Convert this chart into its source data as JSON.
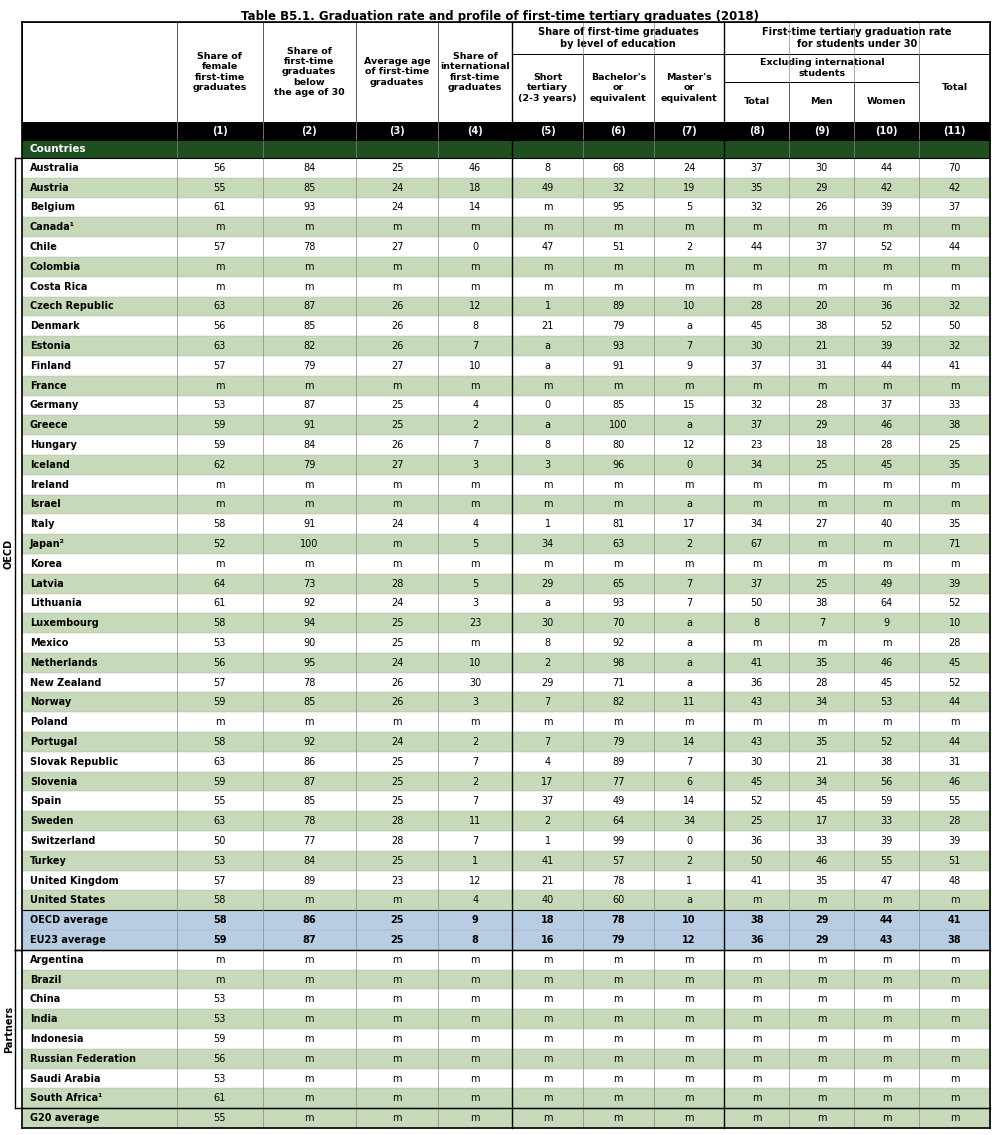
{
  "title": "Table B5.1. Graduation rate and profile of first-time tertiary graduates (2018)",
  "col_numbers": [
    "(1)",
    "(2)",
    "(3)",
    "(4)",
    "(5)",
    "(6)",
    "(7)",
    "(8)",
    "(9)",
    "(10)",
    "(11)"
  ],
  "oecd_label": "OECD",
  "partners_label": "Partners",
  "countries_header": "Countries",
  "rows": [
    [
      "Australia",
      "56",
      "84",
      "25",
      "46",
      "8",
      "68",
      "24",
      "37",
      "30",
      "44",
      "70"
    ],
    [
      "Austria",
      "55",
      "85",
      "24",
      "18",
      "49",
      "32",
      "19",
      "35",
      "29",
      "42",
      "42"
    ],
    [
      "Belgium",
      "61",
      "93",
      "24",
      "14",
      "m",
      "95",
      "5",
      "32",
      "26",
      "39",
      "37"
    ],
    [
      "Canada¹",
      "m",
      "m",
      "m",
      "m",
      "m",
      "m",
      "m",
      "m",
      "m",
      "m",
      "m"
    ],
    [
      "Chile",
      "57",
      "78",
      "27",
      "0",
      "47",
      "51",
      "2",
      "44",
      "37",
      "52",
      "44"
    ],
    [
      "Colombia",
      "m",
      "m",
      "m",
      "m",
      "m",
      "m",
      "m",
      "m",
      "m",
      "m",
      "m"
    ],
    [
      "Costa Rica",
      "m",
      "m",
      "m",
      "m",
      "m",
      "m",
      "m",
      "m",
      "m",
      "m",
      "m"
    ],
    [
      "Czech Republic",
      "63",
      "87",
      "26",
      "12",
      "1",
      "89",
      "10",
      "28",
      "20",
      "36",
      "32"
    ],
    [
      "Denmark",
      "56",
      "85",
      "26",
      "8",
      "21",
      "79",
      "a",
      "45",
      "38",
      "52",
      "50"
    ],
    [
      "Estonia",
      "63",
      "82",
      "26",
      "7",
      "a",
      "93",
      "7",
      "30",
      "21",
      "39",
      "32"
    ],
    [
      "Finland",
      "57",
      "79",
      "27",
      "10",
      "a",
      "91",
      "9",
      "37",
      "31",
      "44",
      "41"
    ],
    [
      "France",
      "m",
      "m",
      "m",
      "m",
      "m",
      "m",
      "m",
      "m",
      "m",
      "m",
      "m"
    ],
    [
      "Germany",
      "53",
      "87",
      "25",
      "4",
      "0",
      "85",
      "15",
      "32",
      "28",
      "37",
      "33"
    ],
    [
      "Greece",
      "59",
      "91",
      "25",
      "2",
      "a",
      "100",
      "a",
      "37",
      "29",
      "46",
      "38"
    ],
    [
      "Hungary",
      "59",
      "84",
      "26",
      "7",
      "8",
      "80",
      "12",
      "23",
      "18",
      "28",
      "25"
    ],
    [
      "Iceland",
      "62",
      "79",
      "27",
      "3",
      "3",
      "96",
      "0",
      "34",
      "25",
      "45",
      "35"
    ],
    [
      "Ireland",
      "m",
      "m",
      "m",
      "m",
      "m",
      "m",
      "m",
      "m",
      "m",
      "m",
      "m"
    ],
    [
      "Israel",
      "m",
      "m",
      "m",
      "m",
      "m",
      "m",
      "a",
      "m",
      "m",
      "m",
      "m"
    ],
    [
      "Italy",
      "58",
      "91",
      "24",
      "4",
      "1",
      "81",
      "17",
      "34",
      "27",
      "40",
      "35"
    ],
    [
      "Japan²",
      "52",
      "100",
      "m",
      "5",
      "34",
      "63",
      "2",
      "67",
      "m",
      "m",
      "71"
    ],
    [
      "Korea",
      "m",
      "m",
      "m",
      "m",
      "m",
      "m",
      "m",
      "m",
      "m",
      "m",
      "m"
    ],
    [
      "Latvia",
      "64",
      "73",
      "28",
      "5",
      "29",
      "65",
      "7",
      "37",
      "25",
      "49",
      "39"
    ],
    [
      "Lithuania",
      "61",
      "92",
      "24",
      "3",
      "a",
      "93",
      "7",
      "50",
      "38",
      "64",
      "52"
    ],
    [
      "Luxembourg",
      "58",
      "94",
      "25",
      "23",
      "30",
      "70",
      "a",
      "8",
      "7",
      "9",
      "10"
    ],
    [
      "Mexico",
      "53",
      "90",
      "25",
      "m",
      "8",
      "92",
      "a",
      "m",
      "m",
      "m",
      "28"
    ],
    [
      "Netherlands",
      "56",
      "95",
      "24",
      "10",
      "2",
      "98",
      "a",
      "41",
      "35",
      "46",
      "45"
    ],
    [
      "New Zealand",
      "57",
      "78",
      "26",
      "30",
      "29",
      "71",
      "a",
      "36",
      "28",
      "45",
      "52"
    ],
    [
      "Norway",
      "59",
      "85",
      "26",
      "3",
      "7",
      "82",
      "11",
      "43",
      "34",
      "53",
      "44"
    ],
    [
      "Poland",
      "m",
      "m",
      "m",
      "m",
      "m",
      "m",
      "m",
      "m",
      "m",
      "m",
      "m"
    ],
    [
      "Portugal",
      "58",
      "92",
      "24",
      "2",
      "7",
      "79",
      "14",
      "43",
      "35",
      "52",
      "44"
    ],
    [
      "Slovak Republic",
      "63",
      "86",
      "25",
      "7",
      "4",
      "89",
      "7",
      "30",
      "21",
      "38",
      "31"
    ],
    [
      "Slovenia",
      "59",
      "87",
      "25",
      "2",
      "17",
      "77",
      "6",
      "45",
      "34",
      "56",
      "46"
    ],
    [
      "Spain",
      "55",
      "85",
      "25",
      "7",
      "37",
      "49",
      "14",
      "52",
      "45",
      "59",
      "55"
    ],
    [
      "Sweden",
      "63",
      "78",
      "28",
      "11",
      "2",
      "64",
      "34",
      "25",
      "17",
      "33",
      "28"
    ],
    [
      "Switzerland",
      "50",
      "77",
      "28",
      "7",
      "1",
      "99",
      "0",
      "36",
      "33",
      "39",
      "39"
    ],
    [
      "Turkey",
      "53",
      "84",
      "25",
      "1",
      "41",
      "57",
      "2",
      "50",
      "46",
      "55",
      "51"
    ],
    [
      "United Kingdom",
      "57",
      "89",
      "23",
      "12",
      "21",
      "78",
      "1",
      "41",
      "35",
      "47",
      "48"
    ],
    [
      "United States",
      "58",
      "m",
      "m",
      "4",
      "40",
      "60",
      "a",
      "m",
      "m",
      "m",
      "m"
    ],
    [
      "OECD average",
      "58",
      "86",
      "25",
      "9",
      "18",
      "78",
      "10",
      "38",
      "29",
      "44",
      "41"
    ],
    [
      "EU23 average",
      "59",
      "87",
      "25",
      "8",
      "16",
      "79",
      "12",
      "36",
      "29",
      "43",
      "38"
    ],
    [
      "Argentina",
      "m",
      "m",
      "m",
      "m",
      "m",
      "m",
      "m",
      "m",
      "m",
      "m",
      "m"
    ],
    [
      "Brazil",
      "m",
      "m",
      "m",
      "m",
      "m",
      "m",
      "m",
      "m",
      "m",
      "m",
      "m"
    ],
    [
      "China",
      "53",
      "m",
      "m",
      "m",
      "m",
      "m",
      "m",
      "m",
      "m",
      "m",
      "m"
    ],
    [
      "India",
      "53",
      "m",
      "m",
      "m",
      "m",
      "m",
      "m",
      "m",
      "m",
      "m",
      "m"
    ],
    [
      "Indonesia",
      "59",
      "m",
      "m",
      "m",
      "m",
      "m",
      "m",
      "m",
      "m",
      "m",
      "m"
    ],
    [
      "Russian Federation",
      "56",
      "m",
      "m",
      "m",
      "m",
      "m",
      "m",
      "m",
      "m",
      "m",
      "m"
    ],
    [
      "Saudi Arabia",
      "53",
      "m",
      "m",
      "m",
      "m",
      "m",
      "m",
      "m",
      "m",
      "m",
      "m"
    ],
    [
      "South Africa¹",
      "61",
      "m",
      "m",
      "m",
      "m",
      "m",
      "m",
      "m",
      "m",
      "m",
      "m"
    ],
    [
      "G20 average",
      "55",
      "m",
      "m",
      "m",
      "m",
      "m",
      "m",
      "m",
      "m",
      "m",
      "m"
    ]
  ],
  "color_light_green": "#c6d9b8",
  "color_dark_green": "#1f4e1f",
  "color_header_bg": "#000000",
  "color_blue_avg": "#b8cce4",
  "color_white": "#ffffff",
  "color_gray_line": "#aaaaaa",
  "color_black": "#000000"
}
